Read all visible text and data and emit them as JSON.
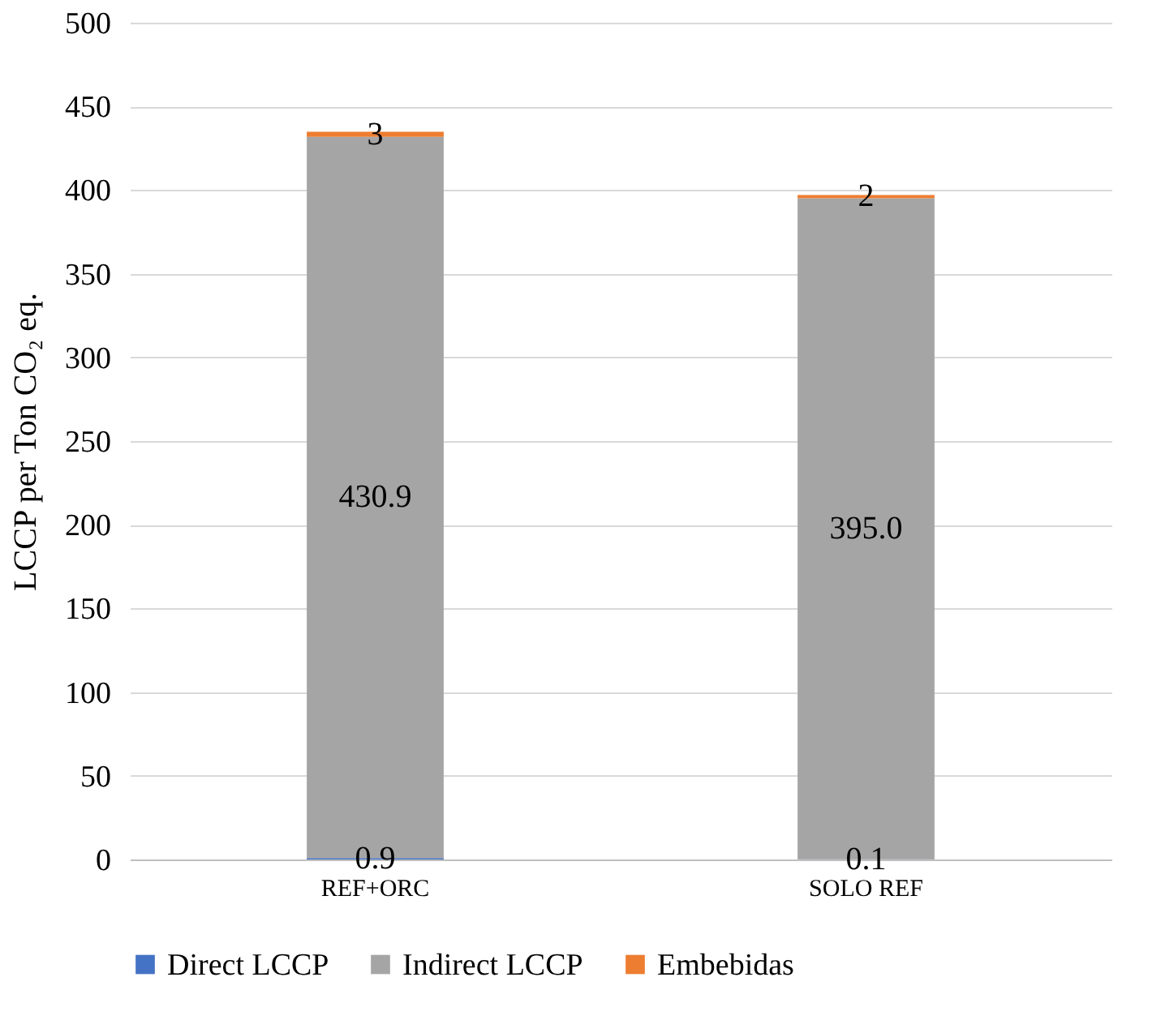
{
  "chart_data": {
    "type": "bar",
    "stacked": true,
    "ylabel": "LCCP per Ton CO₂ eq.",
    "categories": [
      "REF+ORC",
      "SOLO REF"
    ],
    "series": [
      {
        "name": "Direct LCCP",
        "color": "#4472c4",
        "values": [
          0.9,
          0.1
        ],
        "value_labels": [
          "0.9",
          "0.1"
        ]
      },
      {
        "name": "Indirect LCCP",
        "color": "#a5a5a5",
        "values": [
          430.9,
          395.0
        ],
        "value_labels": [
          "430.9",
          "395.0"
        ]
      },
      {
        "name": "Embebidas",
        "color": "#ed7d31",
        "values": [
          3,
          2
        ],
        "value_labels": [
          "3",
          "2"
        ]
      }
    ],
    "ylim": [
      0,
      500
    ],
    "yticks": [
      0,
      50,
      100,
      150,
      200,
      250,
      300,
      350,
      400,
      450,
      500
    ],
    "grid": "y",
    "legend": "bottom"
  }
}
